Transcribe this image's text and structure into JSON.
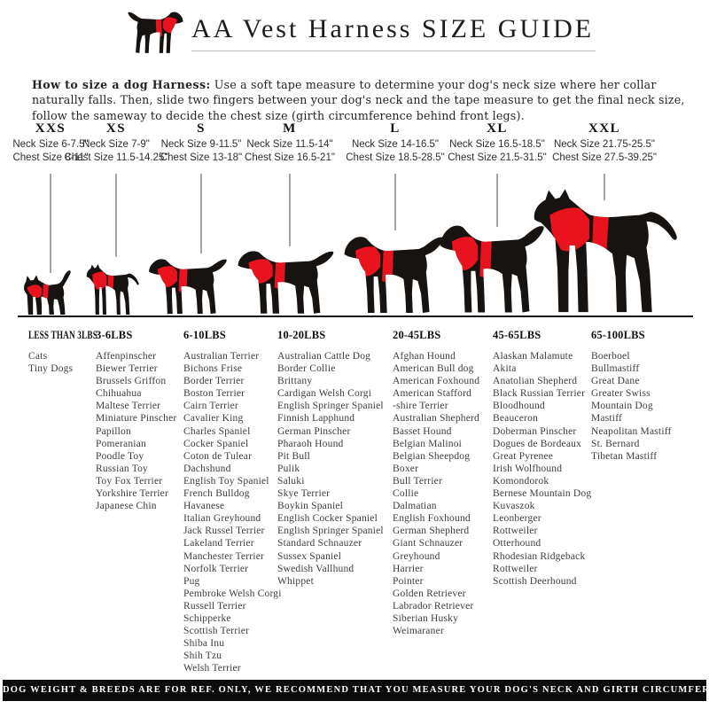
{
  "header": {
    "title": "AA Vest Harness SIZE GUIDE",
    "logo_icon": "black-dog-with-red-harness"
  },
  "instructions": {
    "lead": "How to size a dog Harness:",
    "body": " Use a soft tape measure to determine your dog's neck size where her collar naturally falls. Then, slide two fingers between your dog's neck and the tape measure to get the final neck size, follow the sameway to decide the chest size (girth circumference behind front legs)."
  },
  "sizes": [
    {
      "label": "XXS",
      "neck": "Neck Size 6-7.5\"",
      "chest": "Chest Size 8-11\""
    },
    {
      "label": "XS",
      "neck": "Neck Size 7-9\"",
      "chest": "Chest Size 11.5-14.25\""
    },
    {
      "label": "S",
      "neck": "Neck Size 9-11.5\"",
      "chest": "Chest Size 13-18\""
    },
    {
      "label": "M",
      "neck": "Neck Size 11.5-14\"",
      "chest": "Chest Size 16.5-21\""
    },
    {
      "label": "L",
      "neck": "Neck Size 14-16.5\"",
      "chest": "Chest Size 18.5-28.5\""
    },
    {
      "label": "XL",
      "neck": "Neck Size 16.5-18.5\"",
      "chest": "Chest Size 21.5-31.5\""
    },
    {
      "label": "XXL",
      "neck": "Neck Size 21.75-25.5\"",
      "chest": "Chest Size 27.5-39.25\""
    }
  ],
  "weight_groups": [
    {
      "label": "LESS THAN 3LBS",
      "breeds": [
        "Cats",
        "Tiny Dogs"
      ]
    },
    {
      "label": "3-6LBS",
      "breeds": [
        "Affenpinscher",
        "Biewer Terrier",
        "Brussels Griffon",
        "Chihuahua",
        "Maltese Terrier",
        "Miniature Pinscher",
        "Papillon",
        "Pomeranian",
        "Poodle Toy",
        "Russian Toy",
        "Toy Fox Terrier",
        "Yorkshire Terrier",
        "Japanese Chin"
      ]
    },
    {
      "label": "6-10LBS",
      "breeds": [
        "Australian Terrier",
        "Bichons Frise",
        "Border Terrier",
        "Boston Terrier",
        "Cairn Terrier",
        "Cavalier King",
        "Charles Spaniel",
        "Cocker Spaniel",
        "Coton de Tulear",
        "Dachshund",
        "English Toy Spaniel",
        "French Bulldog",
        "Havanese",
        "Italian Greyhound",
        "Jack Russel Terrier",
        "Lakeland Terrier",
        "Manchester Terrier",
        "Norfolk Terrier",
        "Pug",
        "Pembroke Welsh Corgi",
        "Russell Terrier",
        "Schipperke",
        "Scottish Terrier",
        "Shiba Inu",
        "Shih Tzu",
        "Welsh Terrier"
      ]
    },
    {
      "label": "10-20LBS",
      "breeds": [
        "Australian Cattle Dog",
        "Border Collie",
        "Brittany",
        "Cardigan Welsh Corgi",
        "English Springer Spaniel",
        "Finnish Lapphund",
        "German Pinscher",
        "Pharaoh Hound",
        "Pit Bull",
        "Pulik",
        "Saluki",
        "Skye Terrier",
        "Boykin Spaniel",
        "English Cocker Spaniel",
        "English Springer Spaniel",
        "Standard Schnauzer",
        "Sussex Spaniel",
        "Swedish Vallhund",
        "Whippet"
      ]
    },
    {
      "label": "20-45LBS",
      "breeds": [
        "Afghan Hound",
        "American Bull dog",
        "American Foxhound",
        "American Stafford",
        "-shire Terrier",
        "Australian Shepherd",
        "Basset Hound",
        "Belgian Malinoi",
        "Belgian Sheepdog",
        "Boxer",
        "Bull Terrier",
        "Collie",
        "Dalmatian",
        "English Foxhound",
        "German Shepherd",
        "Giant Schnauzer",
        "Greyhound",
        "Harrier",
        "Pointer",
        "Golden Retriever",
        "Labrador Retriever",
        "Siberian Husky",
        "Weimaraner"
      ]
    },
    {
      "label": "45-65LBS",
      "breeds": [
        "Alaskan Malamute",
        "Akita",
        "Anatolian Shepherd",
        "Black Russian Terrier",
        "Bloodhound",
        "Beauceron",
        "Doberman Pinscher",
        "Dogues de Bordeaux",
        "Great Pyrenee",
        "Irish Wolfhound",
        "Komondorok",
        "Bernese Mountain Dog",
        "Kuvaszok",
        "Leonberger",
        "Rottweiler",
        "Otterhound",
        "Rhodesian Ridgeback",
        "Rottweiler",
        "Scottish Deerhound"
      ]
    },
    {
      "label": "65-100LBS",
      "breeds": [
        "Boerboel",
        "Bullmastiff",
        "Great Dane",
        "Greater Swiss",
        "Mountain Dog",
        "Mastiff",
        "Neapolitan Mastiff",
        "St. Bernard",
        "Tibetan Mastiff"
      ]
    }
  ],
  "footer": {
    "text": "DOG WEIGHT & BREEDS ARE FOR REF. ONLY, WE RECOMMEND THAT YOU MEASURE YOUR DOG'S NECK AND GIRTH CIRCUMFERENCE BEFORE PURCHASE"
  },
  "colors": {
    "harness_red": "#e8131c",
    "silhouette_black": "#171311",
    "pointer_line_gray": "#a5a5a5"
  }
}
